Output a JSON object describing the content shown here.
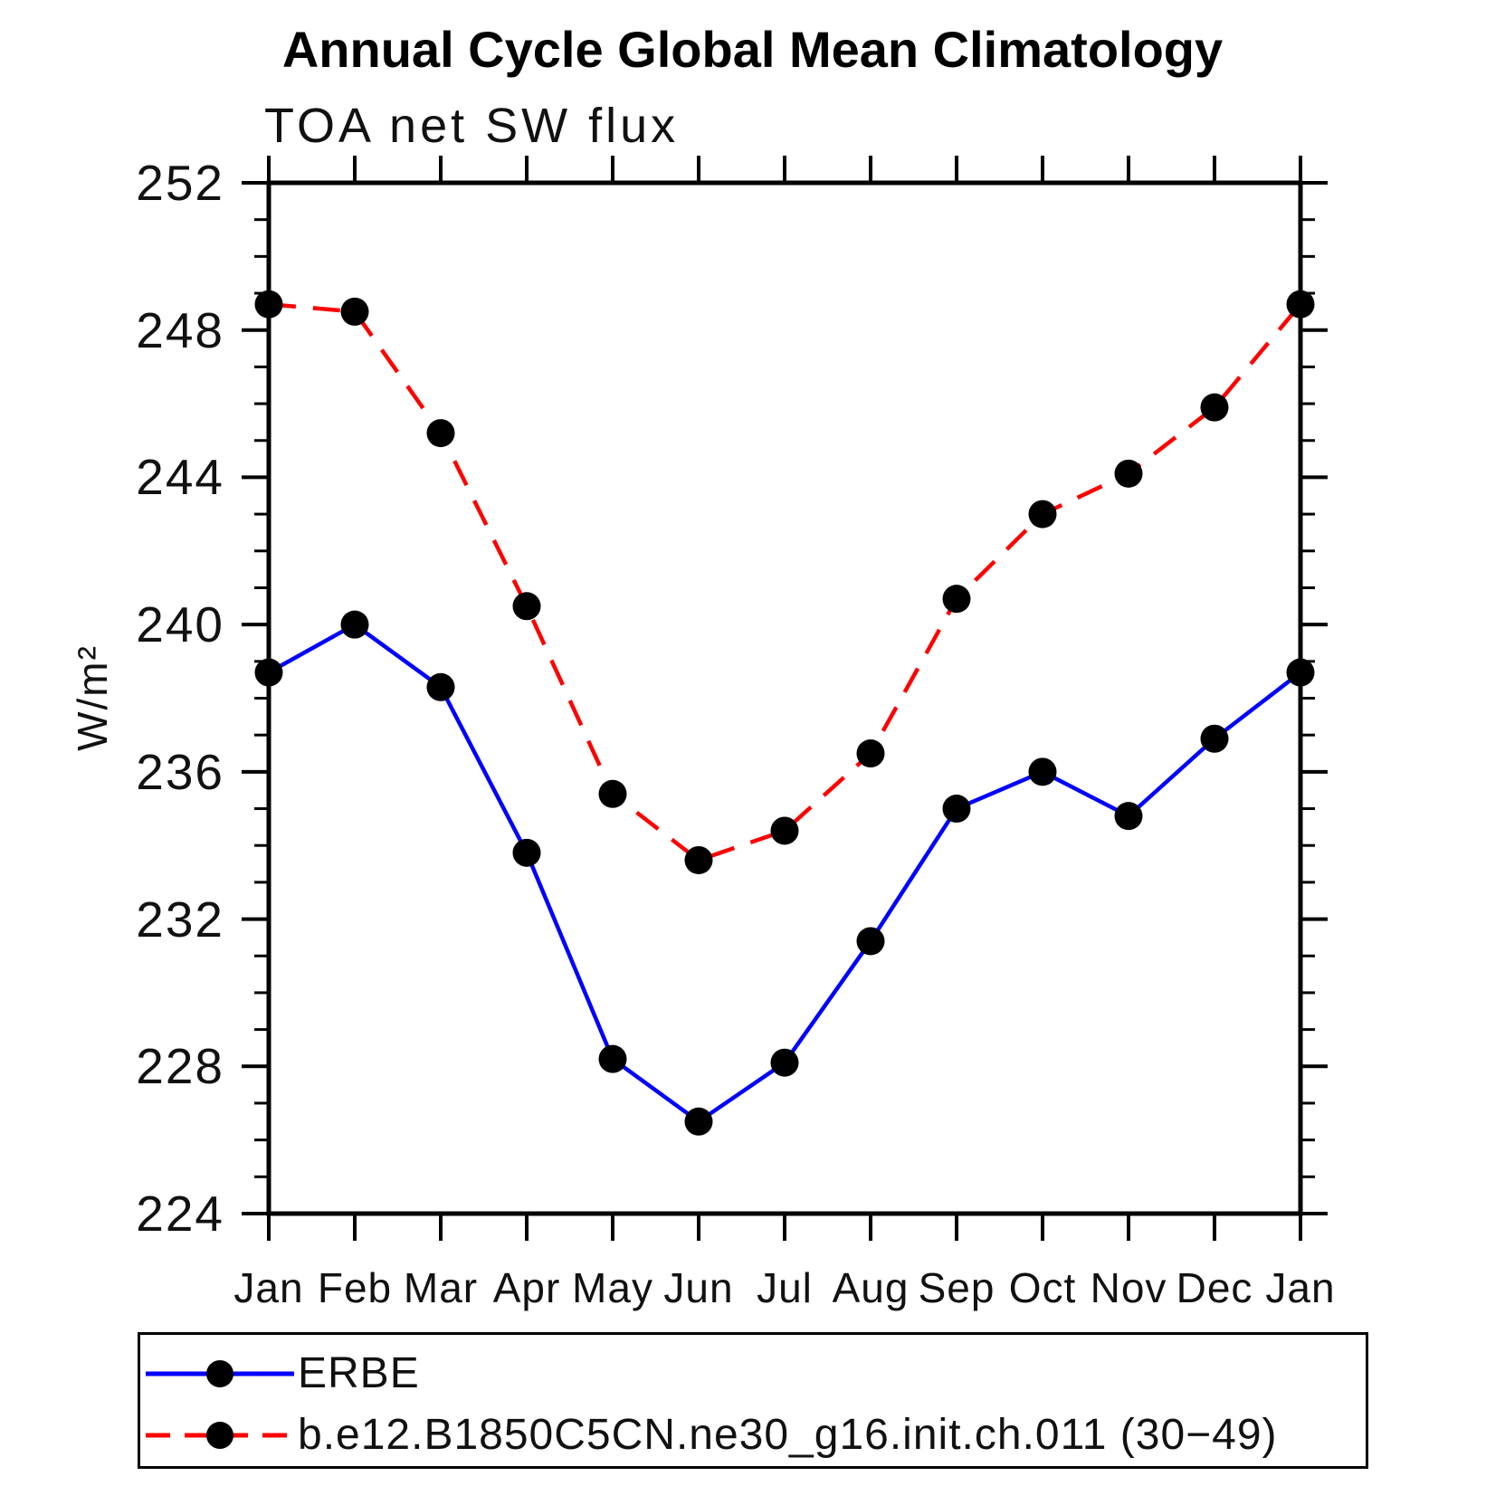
{
  "title": "Annual Cycle Global Mean Climatology",
  "subtitle": "TOA net SW flux",
  "ylabel": "W/m²",
  "chart_data": {
    "type": "line",
    "title": "Annual Cycle Global Mean Climatology",
    "subtitle": "TOA net SW flux",
    "ylabel": "W/m²",
    "x_categories": [
      "Jan",
      "Feb",
      "Mar",
      "Apr",
      "May",
      "Jun",
      "Jul",
      "Aug",
      "Sep",
      "Oct",
      "Nov",
      "Dec",
      "Jan"
    ],
    "ylim": [
      224,
      252
    ],
    "ytick_major_step": 4,
    "ytick_minor_step": 1,
    "grid": false,
    "legend_position": "bottom-left-box",
    "colors": {
      "axis": "#000000",
      "erbe_line": "#0000ff",
      "model_line": "#ff0000",
      "marker": "#000000"
    },
    "series": [
      {
        "name": "ERBE",
        "color": "#0000ff",
        "style": "solid",
        "marker": "circle",
        "marker_color": "#000000",
        "values": [
          238.7,
          240.0,
          238.3,
          233.8,
          228.2,
          226.5,
          228.1,
          231.4,
          235.0,
          236.0,
          234.8,
          236.9,
          238.7
        ]
      },
      {
        "name": "b.e12.B1850C5CN.ne30_g16.init.ch.011 (30−49)",
        "color": "#ff0000",
        "style": "dashed",
        "marker": "circle",
        "marker_color": "#000000",
        "values": [
          248.7,
          248.5,
          245.2,
          240.5,
          235.4,
          233.6,
          234.4,
          236.5,
          240.7,
          243.0,
          244.1,
          245.9,
          248.7
        ]
      }
    ]
  }
}
